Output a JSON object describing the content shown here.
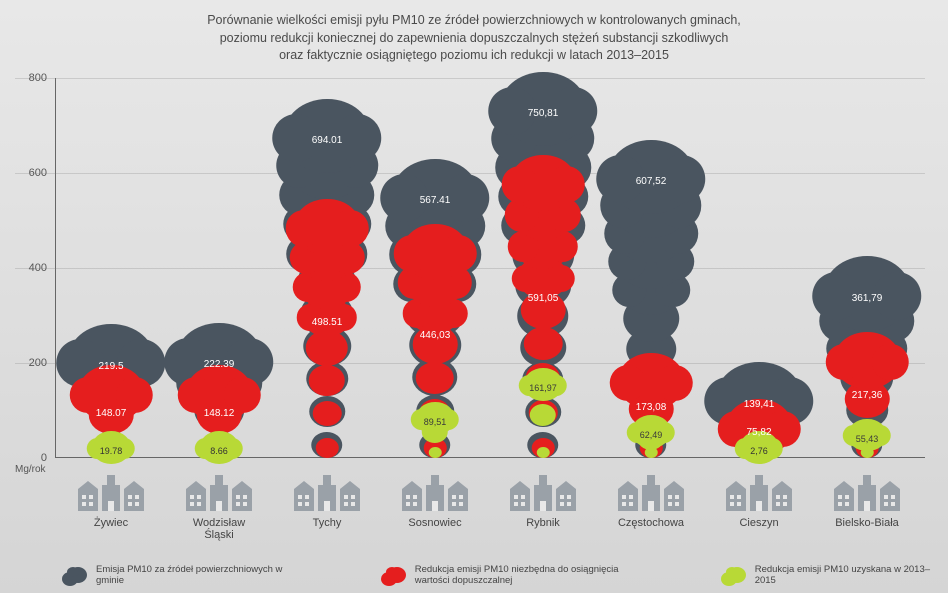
{
  "title_lines": [
    "Porównanie wielkości emisji pyłu PM10 ze źródeł powierzchniowych w kontrolowanych gminach,",
    "poziomu redukcji koniecznej do zapewnienia dopuszczalnych stężeń substancji szkodliwych",
    "oraz faktycznie osiągniętego poziomu ich redukcji w latach 2013–2015"
  ],
  "chart": {
    "type": "pictorial-bar",
    "y_unit": "Mg/rok",
    "y_ticks": [
      0,
      200,
      400,
      600,
      800
    ],
    "ylim": [
      0,
      800
    ],
    "colors": {
      "emission": "#4a5560",
      "required_reduction": "#e51e1e",
      "achieved_reduction": "#b8d936",
      "factory_fill": "#9aa1a8",
      "text_on_cloud": "#ffffff",
      "text_on_green_dark": "#3a3a3a"
    },
    "municipalities": [
      {
        "name": "Żywiec",
        "emission": 219.5,
        "required": 148.07,
        "achieved": 19.78,
        "emission_label": "219.5",
        "required_label": "148.07",
        "achieved_label": "19.78"
      },
      {
        "name": "Wodzisław Śląski",
        "emission": 222.39,
        "required": 148.12,
        "achieved": 8.66,
        "emission_label": "222.39",
        "required_label": "148.12",
        "achieved_label": "8.66"
      },
      {
        "name": "Tychy",
        "emission": 694.01,
        "required": 498.51,
        "achieved": null,
        "emission_label": "694.01",
        "required_label": "498.51",
        "achieved_label": ""
      },
      {
        "name": "Sosnowiec",
        "emission": 567.41,
        "required": 446.03,
        "achieved": 89.51,
        "emission_label": "567.41",
        "required_label": "446,03",
        "achieved_label": "89,51"
      },
      {
        "name": "Rybnik",
        "emission": 750.81,
        "required": 591.05,
        "achieved": 161.97,
        "emission_label": "750,81",
        "required_label": "591,05",
        "achieved_label": "161,97"
      },
      {
        "name": "Częstochowa",
        "emission": 607.52,
        "required": 173.08,
        "achieved": 62.49,
        "emission_label": "607,52",
        "required_label": "173,08",
        "achieved_label": "62,49"
      },
      {
        "name": "Cieszyn",
        "emission": 139.41,
        "required": 75.82,
        "achieved": 2.76,
        "emission_label": "139,41",
        "required_label": "75,82",
        "achieved_label": "2,76"
      },
      {
        "name": "Bielsko-Biała",
        "emission": 361.79,
        "required": 217.36,
        "achieved": 55.43,
        "emission_label": "361,79",
        "required_label": "217,36",
        "achieved_label": "55,43"
      }
    ]
  },
  "legend": [
    {
      "color": "#4a5560",
      "text": "Emisja PM10 za źródeł powierzchniowych w gminie"
    },
    {
      "color": "#e51e1e",
      "text": "Redukcja emisji PM10 niezbędna do osiągnięcia wartości dopuszczalnej"
    },
    {
      "color": "#b8d936",
      "text": "Redukcja emisji PM10 uzyskana w 2013–2015"
    }
  ]
}
